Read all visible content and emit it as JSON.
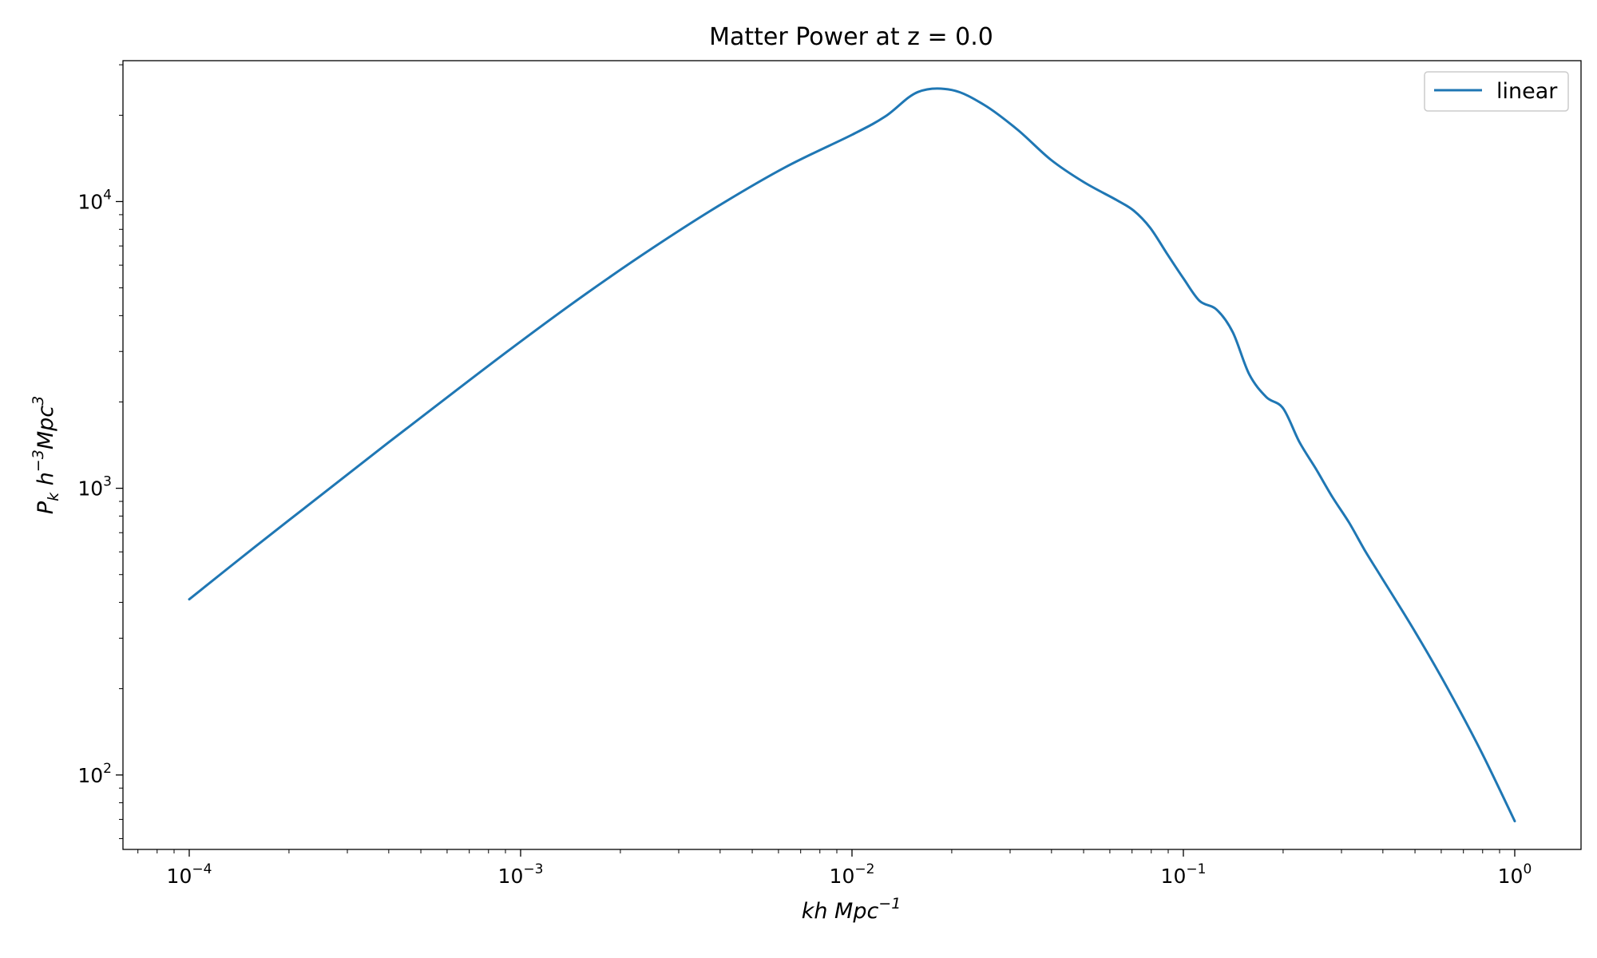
{
  "chart_data": {
    "type": "line",
    "title": "Matter Power at z = 0.0",
    "xlabel_main": "kh Mpc",
    "xlabel_sup": "−1",
    "ylabel_p": "P",
    "ylabel_sub": "k",
    "ylabel_h": " h",
    "ylabel_hsup": "−3",
    "ylabel_mpc": "Mpc",
    "ylabel_mpcsup": "3",
    "x_scale": "log",
    "y_scale": "log",
    "xlim": [
      6.31e-05,
      1.585
    ],
    "ylim": [
      55,
      31000
    ],
    "grid": false,
    "legend_position": "top-right",
    "x_ticks": [
      {
        "value": 0.0001,
        "base": "10",
        "exp": "−4"
      },
      {
        "value": 0.001,
        "base": "10",
        "exp": "−3"
      },
      {
        "value": 0.01,
        "base": "10",
        "exp": "−2"
      },
      {
        "value": 0.1,
        "base": "10",
        "exp": "−1"
      },
      {
        "value": 1,
        "base": "10",
        "exp": "0"
      }
    ],
    "y_ticks": [
      {
        "value": 100,
        "base": "10",
        "exp": "2"
      },
      {
        "value": 1000,
        "base": "10",
        "exp": "3"
      },
      {
        "value": 10000,
        "base": "10",
        "exp": "4"
      }
    ],
    "series": [
      {
        "name": "linear",
        "color": "#1f77b4",
        "x": [
          0.0001,
          0.000158,
          0.000251,
          0.000398,
          0.000631,
          0.001,
          0.00158,
          0.00251,
          0.00398,
          0.00631,
          0.01,
          0.0126,
          0.0158,
          0.02,
          0.0251,
          0.0316,
          0.0398,
          0.05,
          0.0631,
          0.0708,
          0.0794,
          0.0891,
          0.1,
          0.112,
          0.126,
          0.141,
          0.158,
          0.178,
          0.2,
          0.224,
          0.251,
          0.282,
          0.316,
          0.355,
          0.398,
          0.501,
          0.631,
          0.794,
          1.0
        ],
        "y": [
          410,
          625,
          950,
          1440,
          2170,
          3250,
          4780,
          6900,
          9700,
          13200,
          17100,
          19800,
          24100,
          24500,
          21700,
          17800,
          14000,
          11700,
          10100,
          9300,
          8100,
          6600,
          5400,
          4500,
          4200,
          3500,
          2500,
          2080,
          1900,
          1450,
          1170,
          930,
          760,
          600,
          485,
          315,
          198,
          120,
          69
        ]
      }
    ]
  }
}
